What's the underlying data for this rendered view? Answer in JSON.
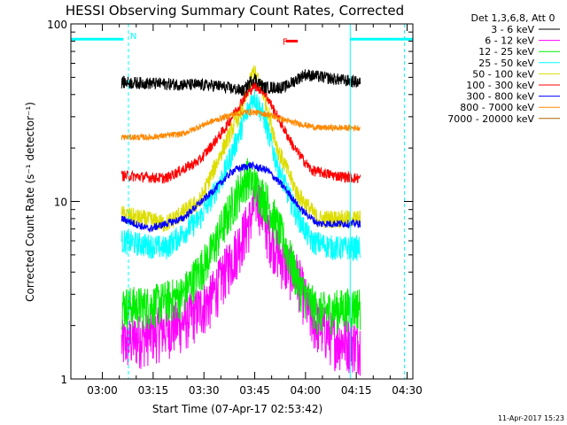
{
  "chart_data": {
    "type": "line",
    "title": "HESSI Observing Summary Count Rates, Corrected",
    "xlabel": "Start Time (07-Apr-17 02:53:42)",
    "ylabel": "Corrected Count Rate (s⁻¹ detector⁻¹)",
    "x_range_min": [
      -3,
      98
    ],
    "ylim": [
      1,
      100
    ],
    "yscale": "log",
    "grid": false,
    "legend_placement": "outside-right",
    "x_ticks": [
      {
        "min": 6.3,
        "label": "03:00"
      },
      {
        "min": 21.3,
        "label": "03:15"
      },
      {
        "min": 36.3,
        "label": "03:30"
      },
      {
        "min": 51.3,
        "label": "03:45"
      },
      {
        "min": 66.3,
        "label": "04:00"
      },
      {
        "min": 81.3,
        "label": "04:15"
      },
      {
        "min": 96.3,
        "label": "04:30"
      }
    ],
    "y_ticks": [
      {
        "value": 1,
        "label": "1"
      },
      {
        "value": 10,
        "label": "10"
      },
      {
        "value": 100,
        "label": "100"
      }
    ],
    "legend_header": "Det 1,3,6,8, Att 0",
    "data_window_min": [
      12.0,
      82.5
    ],
    "series": [
      {
        "name": "3 - 6 keV",
        "color": "#000000",
        "base": 47,
        "peak": 55,
        "noise": 0.08,
        "points": [
          [
            12,
            47
          ],
          [
            25,
            46
          ],
          [
            40,
            45
          ],
          [
            48,
            42
          ],
          [
            51,
            50
          ],
          [
            54,
            44
          ],
          [
            60,
            44
          ],
          [
            66,
            52
          ],
          [
            75,
            49
          ],
          [
            82,
            47
          ]
        ]
      },
      {
        "name": "6 - 12 keV",
        "color": "#ff00ff",
        "base": 2.0,
        "peak": 11,
        "noise": 0.35,
        "points": [
          [
            12,
            1.6
          ],
          [
            20,
            1.8
          ],
          [
            30,
            2.1
          ],
          [
            38,
            2.8
          ],
          [
            45,
            5
          ],
          [
            50,
            8
          ],
          [
            52,
            11
          ],
          [
            55,
            7
          ],
          [
            60,
            4.5
          ],
          [
            64,
            3.8
          ],
          [
            68,
            2.2
          ],
          [
            75,
            1.7
          ],
          [
            82,
            1.6
          ]
        ]
      },
      {
        "name": "12 - 25 keV",
        "color": "#00ee00",
        "base": 2.6,
        "peak": 14,
        "noise": 0.28,
        "points": [
          [
            12,
            2.6
          ],
          [
            20,
            2.6
          ],
          [
            30,
            3
          ],
          [
            38,
            5
          ],
          [
            45,
            10
          ],
          [
            49,
            14
          ],
          [
            52,
            12
          ],
          [
            55,
            10
          ],
          [
            60,
            6
          ],
          [
            65,
            3.2
          ],
          [
            70,
            2.4
          ],
          [
            82,
            2.6
          ]
        ]
      },
      {
        "name": "25 - 50 keV",
        "color": "#00ffff",
        "base": 5.5,
        "peak": 40,
        "noise": 0.16,
        "points": [
          [
            12,
            6
          ],
          [
            25,
            5.5
          ],
          [
            35,
            8
          ],
          [
            42,
            14
          ],
          [
            47,
            25
          ],
          [
            51,
            40
          ],
          [
            54,
            30
          ],
          [
            58,
            16
          ],
          [
            63,
            9
          ],
          [
            68,
            6
          ],
          [
            75,
            5.5
          ],
          [
            82,
            5.5
          ]
        ]
      },
      {
        "name": "50 - 100 keV",
        "color": "#dddd00",
        "base": 8.0,
        "peak": 55,
        "noise": 0.12,
        "points": [
          [
            12,
            8.5
          ],
          [
            25,
            7.5
          ],
          [
            35,
            10
          ],
          [
            42,
            20
          ],
          [
            48,
            35
          ],
          [
            51,
            55
          ],
          [
            54,
            40
          ],
          [
            58,
            20
          ],
          [
            64,
            11
          ],
          [
            70,
            8
          ],
          [
            82,
            8
          ]
        ]
      },
      {
        "name": "100 - 300 keV",
        "color": "#ff0000",
        "base": 14,
        "peak": 45,
        "noise": 0.07,
        "points": [
          [
            12,
            14
          ],
          [
            25,
            13.5
          ],
          [
            35,
            17
          ],
          [
            42,
            25
          ],
          [
            48,
            38
          ],
          [
            51,
            45
          ],
          [
            54,
            42
          ],
          [
            58,
            30
          ],
          [
            63,
            20
          ],
          [
            68,
            15
          ],
          [
            75,
            14
          ],
          [
            82,
            13.5
          ]
        ]
      },
      {
        "name": "300 - 800 keV",
        "color": "#0000ff",
        "base": 7.2,
        "peak": 16,
        "noise": 0.05,
        "points": [
          [
            12,
            8
          ],
          [
            20,
            7
          ],
          [
            30,
            8
          ],
          [
            38,
            11
          ],
          [
            45,
            15
          ],
          [
            50,
            16
          ],
          [
            55,
            15
          ],
          [
            60,
            12
          ],
          [
            65,
            9
          ],
          [
            70,
            7.5
          ],
          [
            82,
            7.5
          ]
        ]
      },
      {
        "name": "800 - 7000 keV",
        "color": "#ff8800",
        "base": 24,
        "peak": 32,
        "noise": 0.04,
        "points": [
          [
            12,
            23
          ],
          [
            20,
            23
          ],
          [
            30,
            24
          ],
          [
            38,
            28
          ],
          [
            45,
            31
          ],
          [
            50,
            32
          ],
          [
            55,
            31
          ],
          [
            62,
            28
          ],
          [
            70,
            26
          ],
          [
            82,
            26
          ]
        ]
      },
      {
        "name": "7000 - 20000 keV",
        "color": "#aa6600",
        "base": 1,
        "peak": 1,
        "noise": 0,
        "points": []
      }
    ],
    "annotations": [
      {
        "text": "N",
        "color": "#00ffff",
        "min": 14.5,
        "value": 86
      },
      {
        "text": "F",
        "color": "#ff0000",
        "min": 59.5,
        "value": 80
      }
    ],
    "cyan_bars": [
      [
        -3,
        12.5
      ],
      [
        79.5,
        98
      ]
    ],
    "cyan_bar_value": 82,
    "cyan_vlines_solid_min": [
      -3,
      79.5
    ],
    "cyan_vlines_dashed_min": [
      14.0,
      95.5
    ],
    "flare_marker": {
      "from_min": 60.5,
      "to_min": 64,
      "value": 80
    },
    "timestamp": "11-Apr-2017 15:23"
  }
}
